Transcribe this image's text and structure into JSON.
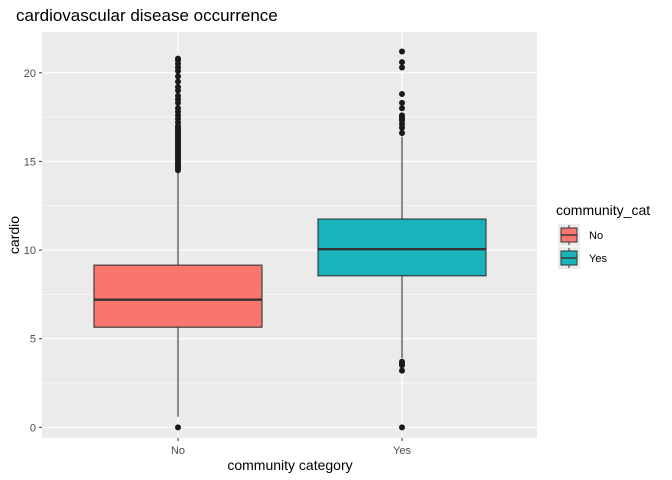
{
  "chart_data": {
    "type": "boxplot",
    "title": "cardiovascular disease occurrence",
    "xlabel": "community category",
    "ylabel": "cardio",
    "categories": [
      "No",
      "Yes"
    ],
    "ylim": [
      -0.6,
      22.3
    ],
    "yticks": [
      0,
      5,
      10,
      15,
      20
    ],
    "grid": true,
    "legend": {
      "title": "community_cat",
      "position": "right",
      "entries": [
        "No",
        "Yes"
      ]
    },
    "colors": {
      "No": "#F8766D",
      "Yes": "#17B5BB",
      "panel": "#EBEBEB",
      "grid": "#FFFFFF",
      "outline": "#333333",
      "point": "#1a1a1a"
    },
    "boxes": [
      {
        "category": "No",
        "whisker_low": 0.6,
        "q1": 5.65,
        "median": 7.2,
        "q3": 9.15,
        "whisker_high": 14.4,
        "outliers": [
          0,
          14.5,
          14.6,
          14.7,
          14.8,
          14.9,
          15.0,
          15.1,
          15.2,
          15.3,
          15.4,
          15.5,
          15.6,
          15.7,
          15.8,
          15.9,
          16.0,
          16.1,
          16.2,
          16.3,
          16.4,
          16.5,
          16.6,
          16.7,
          16.8,
          16.9,
          17.0,
          17.2,
          17.4,
          17.6,
          17.8,
          18.0,
          18.3,
          18.5,
          18.7,
          19.0,
          19.2,
          19.5,
          19.8,
          20.1,
          20.3,
          20.5,
          20.7,
          20.8
        ]
      },
      {
        "category": "Yes",
        "whisker_low": 3.9,
        "q1": 8.55,
        "median": 10.05,
        "q3": 11.75,
        "whisker_high": 16.4,
        "outliers": [
          0,
          3.2,
          3.5,
          3.6,
          3.7,
          16.6,
          16.9,
          17.1,
          17.3,
          17.4,
          17.5,
          17.6,
          18.0,
          18.3,
          18.8,
          20.3,
          20.6,
          21.2
        ]
      }
    ]
  }
}
